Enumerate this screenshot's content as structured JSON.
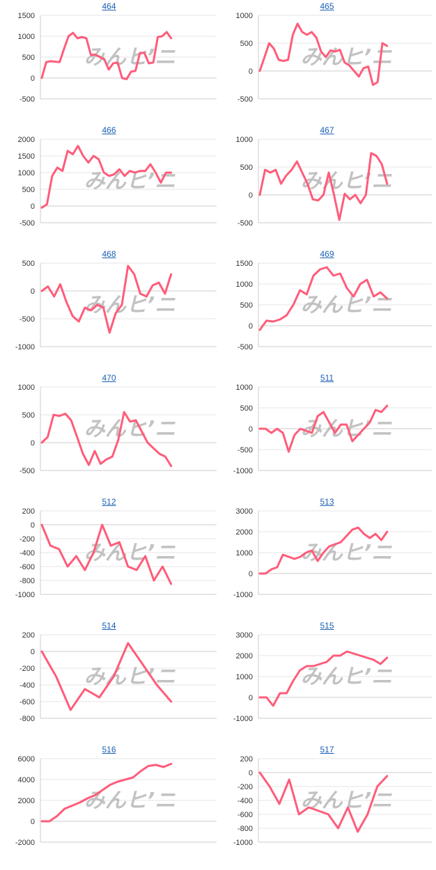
{
  "colors": {
    "line": "#ff5c7a",
    "grid": "#e4e4e4",
    "axis": "#cccccc",
    "wm_pink": "#f0a8a8",
    "wm_gray": "#b8b8b8"
  },
  "watermark": "みんヒ’ニ",
  "chart_data": [
    {
      "type": "line",
      "title": "464",
      "ylim": [
        -500,
        1500
      ],
      "ticks": [
        1500,
        1000,
        500,
        0,
        -500
      ],
      "values": [
        0,
        380,
        400,
        390,
        380,
        700,
        1000,
        1080,
        950,
        980,
        950,
        550,
        560,
        500,
        450,
        200,
        350,
        370,
        0,
        -30,
        150,
        170,
        600,
        600,
        350,
        370,
        980,
        1000,
        1100,
        950
      ]
    },
    {
      "type": "line",
      "title": "465",
      "ylim": [
        -500,
        1000
      ],
      "ticks": [
        1000,
        500,
        0,
        -500
      ],
      "values": [
        0,
        250,
        500,
        400,
        200,
        180,
        200,
        650,
        850,
        700,
        650,
        700,
        600,
        350,
        250,
        370,
        350,
        380,
        150,
        100,
        0,
        -100,
        50,
        80,
        -250,
        -200,
        500,
        450
      ]
    },
    {
      "type": "line",
      "title": "466",
      "ylim": [
        -500,
        2000
      ],
      "ticks": [
        2000,
        1500,
        1000,
        500,
        0,
        -500
      ],
      "values": [
        -50,
        50,
        900,
        1150,
        1050,
        1650,
        1550,
        1800,
        1500,
        1300,
        1500,
        1400,
        1000,
        900,
        950,
        1100,
        900,
        1050,
        1000,
        1050,
        1050,
        1250,
        1000,
        700,
        1000,
        1000
      ]
    },
    {
      "type": "line",
      "title": "467",
      "ylim": [
        -500,
        1000
      ],
      "ticks": [
        1000,
        500,
        0,
        -500
      ],
      "values": [
        0,
        450,
        400,
        450,
        200,
        350,
        450,
        600,
        400,
        200,
        -80,
        -100,
        0,
        400,
        0,
        -450,
        20,
        -80,
        0,
        -150,
        0,
        750,
        700,
        550,
        200
      ]
    },
    {
      "type": "line",
      "title": "468",
      "ylim": [
        -1000,
        500
      ],
      "ticks": [
        500,
        0,
        -500,
        -1000
      ],
      "values": [
        0,
        80,
        -100,
        120,
        -200,
        -450,
        -550,
        -300,
        -350,
        -250,
        -300,
        -750,
        -400,
        -250,
        450,
        300,
        -50,
        -100,
        100,
        150,
        -50,
        300
      ]
    },
    {
      "type": "line",
      "title": "469",
      "ylim": [
        -500,
        1500
      ],
      "ticks": [
        1500,
        1000,
        500,
        0,
        -500
      ],
      "values": [
        -100,
        120,
        100,
        150,
        250,
        500,
        850,
        750,
        1200,
        1350,
        1400,
        1200,
        1250,
        900,
        700,
        1000,
        1100,
        700,
        800,
        650
      ]
    },
    {
      "type": "line",
      "title": "470",
      "ylim": [
        -500,
        1000
      ],
      "ticks": [
        1000,
        500,
        0,
        -500
      ],
      "values": [
        0,
        100,
        500,
        480,
        520,
        400,
        100,
        -200,
        -400,
        -150,
        -380,
        -300,
        -250,
        50,
        550,
        380,
        400,
        200,
        0,
        -100,
        -200,
        -250,
        -420
      ]
    },
    {
      "type": "line",
      "title": "511",
      "ylim": [
        -1000,
        1000
      ],
      "ticks": [
        1000,
        500,
        0,
        -500,
        -1000
      ],
      "values": [
        0,
        0,
        -100,
        0,
        -100,
        -550,
        -150,
        0,
        -50,
        -100,
        300,
        400,
        150,
        -100,
        100,
        100,
        -300,
        -150,
        0,
        150,
        450,
        400,
        550
      ]
    },
    {
      "type": "line",
      "title": "512",
      "ylim": [
        -1000,
        200
      ],
      "ticks": [
        200,
        0,
        -200,
        -400,
        -600,
        -800,
        -1000
      ],
      "values": [
        0,
        -300,
        -350,
        -600,
        -450,
        -650,
        -400,
        0,
        -300,
        -250,
        -600,
        -650,
        -450,
        -800,
        -600,
        -850
      ]
    },
    {
      "type": "line",
      "title": "513",
      "ylim": [
        -1000,
        3000
      ],
      "ticks": [
        3000,
        2000,
        1000,
        0,
        -1000
      ],
      "values": [
        0,
        0,
        200,
        300,
        900,
        800,
        700,
        800,
        1000,
        1100,
        600,
        1000,
        1300,
        1400,
        1500,
        1800,
        2100,
        2200,
        1900,
        1700,
        1900,
        1600,
        2000
      ]
    },
    {
      "type": "line",
      "title": "514",
      "ylim": [
        -800,
        200
      ],
      "ticks": [
        200,
        0,
        -200,
        -400,
        -600,
        -800
      ],
      "values": [
        0,
        -300,
        -700,
        -450,
        -550,
        -300,
        100,
        -150,
        -400,
        -600
      ]
    },
    {
      "type": "line",
      "title": "515",
      "ylim": [
        -1000,
        3000
      ],
      "ticks": [
        3000,
        2000,
        1000,
        0,
        -1000
      ],
      "values": [
        0,
        0,
        -400,
        200,
        200,
        800,
        1300,
        1500,
        1500,
        1600,
        1700,
        2000,
        2000,
        2200,
        2100,
        2000,
        1900,
        1800,
        1600,
        1900
      ]
    },
    {
      "type": "line",
      "title": "516",
      "ylim": [
        -2000,
        6000
      ],
      "ticks": [
        6000,
        4000,
        2000,
        0,
        -2000
      ],
      "values": [
        0,
        0,
        500,
        1200,
        1500,
        1800,
        2200,
        2500,
        3000,
        3500,
        3800,
        4000,
        4200,
        4800,
        5300,
        5400,
        5200,
        5500
      ]
    },
    {
      "type": "line",
      "title": "517",
      "ylim": [
        -1000,
        200
      ],
      "ticks": [
        200,
        0,
        -200,
        -400,
        -600,
        -800,
        -1000
      ],
      "values": [
        0,
        -200,
        -450,
        -100,
        -600,
        -500,
        -550,
        -600,
        -800,
        -500,
        -850,
        -600,
        -200,
        -50
      ]
    }
  ]
}
